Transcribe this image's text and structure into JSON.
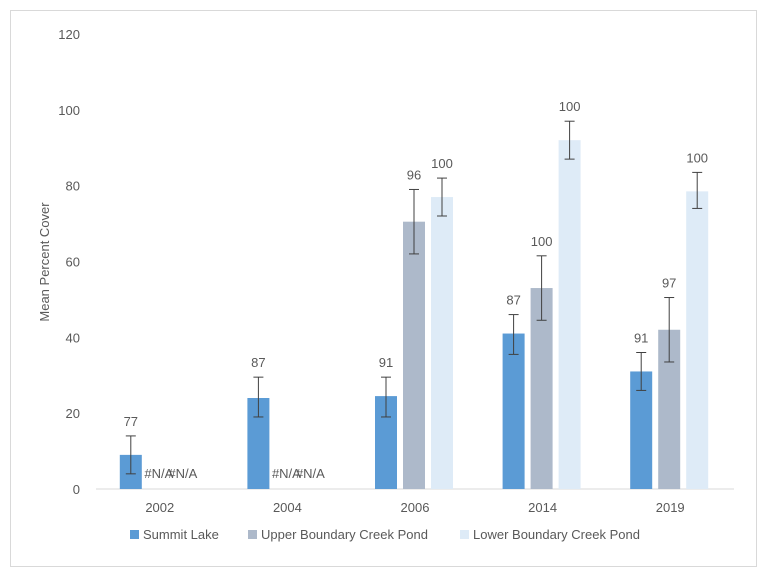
{
  "chart_data": {
    "type": "bar",
    "title": "",
    "xlabel": "",
    "ylabel": "Mean Percent Cover",
    "ylim": [
      0,
      120
    ],
    "yticks": [
      0,
      20,
      40,
      60,
      80,
      100,
      120
    ],
    "grid": false,
    "legend_placement": "bottom",
    "categories": [
      "2002",
      "2004",
      "2006",
      "2014",
      "2019"
    ],
    "series": [
      {
        "name": "Summit Lake",
        "color": "#5B9BD5",
        "values": [
          9,
          24,
          24.5,
          41,
          31
        ],
        "error_low": [
          4,
          19,
          19,
          35.5,
          26
        ],
        "error_high": [
          14,
          29.5,
          29.5,
          46,
          36
        ],
        "labels": [
          "77",
          "87",
          "91",
          "87",
          "91"
        ]
      },
      {
        "name": "Upper Boundary Creek Pond",
        "color": "#ADB9CA",
        "values": [
          null,
          null,
          70.5,
          53,
          42
        ],
        "error_low": [
          null,
          null,
          62,
          44.5,
          33.5
        ],
        "error_high": [
          null,
          null,
          79,
          61.5,
          50.5
        ],
        "labels": [
          "#N/A",
          "#N/A",
          "96",
          "100",
          "97"
        ]
      },
      {
        "name": "Lower Boundary Creek Pond",
        "color": "#DEEBF7",
        "values": [
          null,
          null,
          77,
          92,
          78.5
        ],
        "error_low": [
          null,
          null,
          72,
          87,
          74
        ],
        "error_high": [
          null,
          null,
          82,
          97,
          83.5
        ],
        "labels": [
          "#N/A",
          "#N/A",
          "100",
          "100",
          "100"
        ]
      }
    ]
  }
}
